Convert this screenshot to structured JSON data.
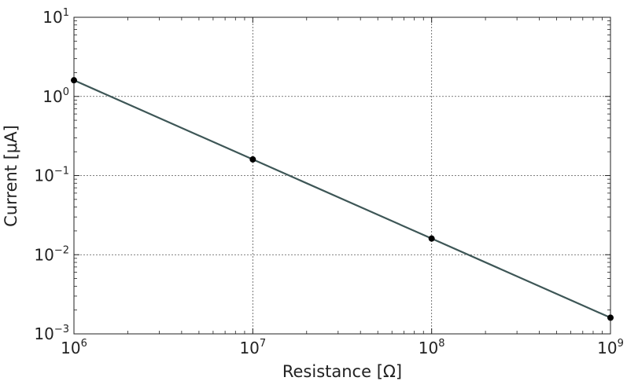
{
  "chart_data": {
    "type": "line",
    "xlabel": "Resistance [Ω]",
    "ylabel": "Current [μA]",
    "x_scale": "log",
    "y_scale": "log",
    "xlim": [
      1000000,
      1000000000
    ],
    "ylim": [
      0.001,
      10
    ],
    "grid": true,
    "x_ticks": [
      {
        "value": 1000000,
        "base": "10",
        "exp": "6"
      },
      {
        "value": 10000000,
        "base": "10",
        "exp": "7"
      },
      {
        "value": 100000000,
        "base": "10",
        "exp": "8"
      },
      {
        "value": 1000000000,
        "base": "10",
        "exp": "9"
      }
    ],
    "y_ticks": [
      {
        "value": 10,
        "base": "10",
        "exp": "1"
      },
      {
        "value": 1,
        "base": "10",
        "exp": "0"
      },
      {
        "value": 0.1,
        "base": "10",
        "exp": "−1"
      },
      {
        "value": 0.01,
        "base": "10",
        "exp": "−2"
      },
      {
        "value": 0.001,
        "base": "10",
        "exp": "−3"
      }
    ],
    "series": [
      {
        "color": "#3d5656",
        "marker_color": "#000000",
        "x": [
          1000000,
          10000000,
          100000000,
          1000000000
        ],
        "y": [
          1.6,
          0.16,
          0.016,
          0.0016
        ]
      }
    ]
  }
}
